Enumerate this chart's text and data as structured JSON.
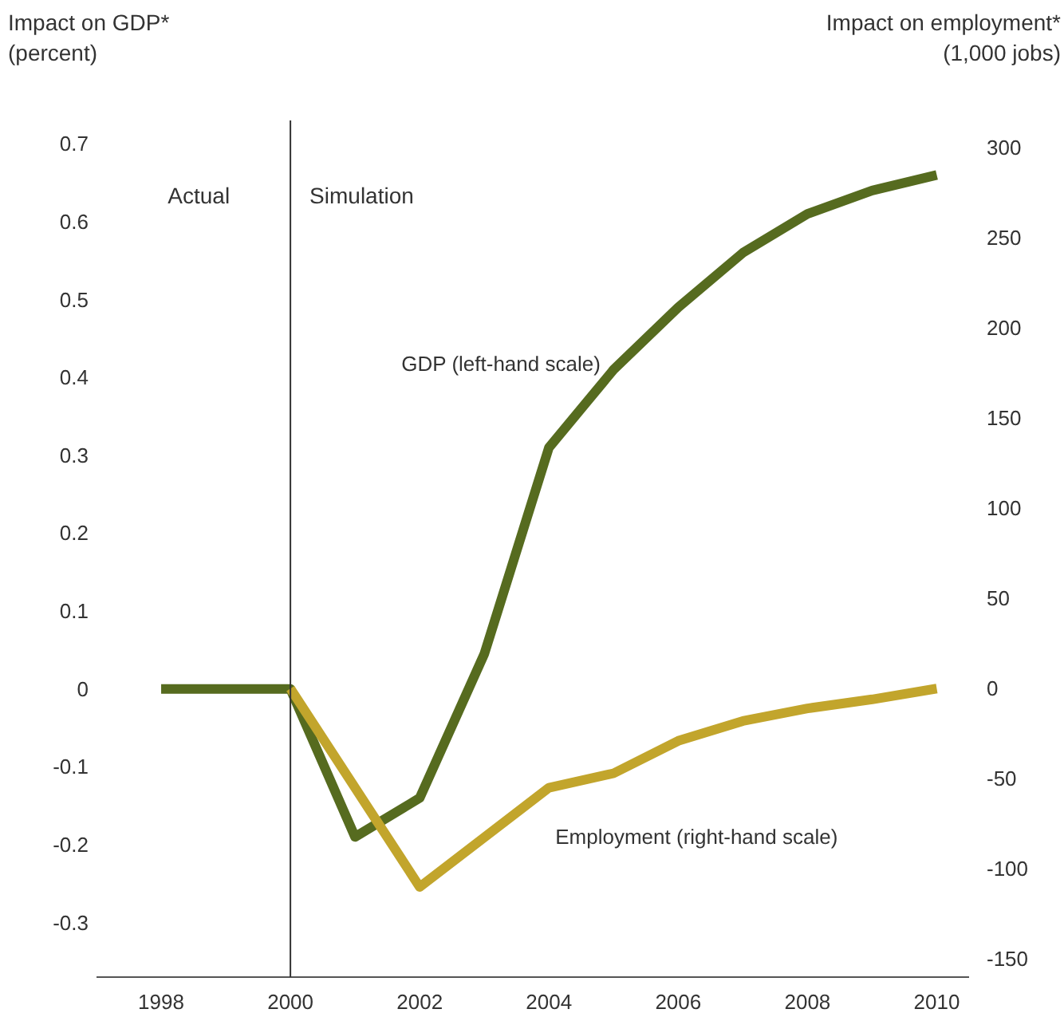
{
  "chart_data": {
    "type": "line",
    "ylabel": "Impact on GDP*\n(percent)",
    "y2label": "Impact on employment*\n(1,000 jobs)",
    "xlim": [
      1997,
      2010.5
    ],
    "xticks": [
      1998,
      2000,
      2002,
      2004,
      2006,
      2008,
      2010
    ],
    "ylim": [
      -0.37,
      0.73
    ],
    "yticks": [
      -0.3,
      -0.2,
      -0.1,
      0,
      0.1,
      0.2,
      0.3,
      0.4,
      0.5,
      0.6,
      0.7
    ],
    "y2lim": [
      -160,
      315
    ],
    "y2ticks": [
      -150,
      -100,
      -50,
      0,
      50,
      100,
      150,
      200,
      250,
      300
    ],
    "series": [
      {
        "name": "GDP (left-hand scale)",
        "color": "#566b1f",
        "x": [
          1998,
          2000,
          2001,
          2002,
          2003,
          2004,
          2005,
          2006,
          2007,
          2008,
          2009,
          2010
        ],
        "values": [
          0,
          0,
          -0.19,
          -0.14,
          0.045,
          0.31,
          0.41,
          0.49,
          0.56,
          0.61,
          0.64,
          0.66
        ]
      },
      {
        "name": "Employment (right-hand scale)",
        "color": "#c2a52c",
        "axis": "y2",
        "x": [
          2000,
          2002,
          2004,
          2005,
          2006,
          2007,
          2008,
          2009,
          2010
        ],
        "values": [
          0,
          -110,
          -55,
          -47,
          -29,
          -18,
          -11,
          -6,
          0
        ]
      }
    ],
    "ref_lines": [
      {
        "axis": "x",
        "value": 2000,
        "label": null,
        "color": "#333333"
      }
    ],
    "annotations": [
      "Actual",
      "Simulation"
    ],
    "grid": false
  }
}
